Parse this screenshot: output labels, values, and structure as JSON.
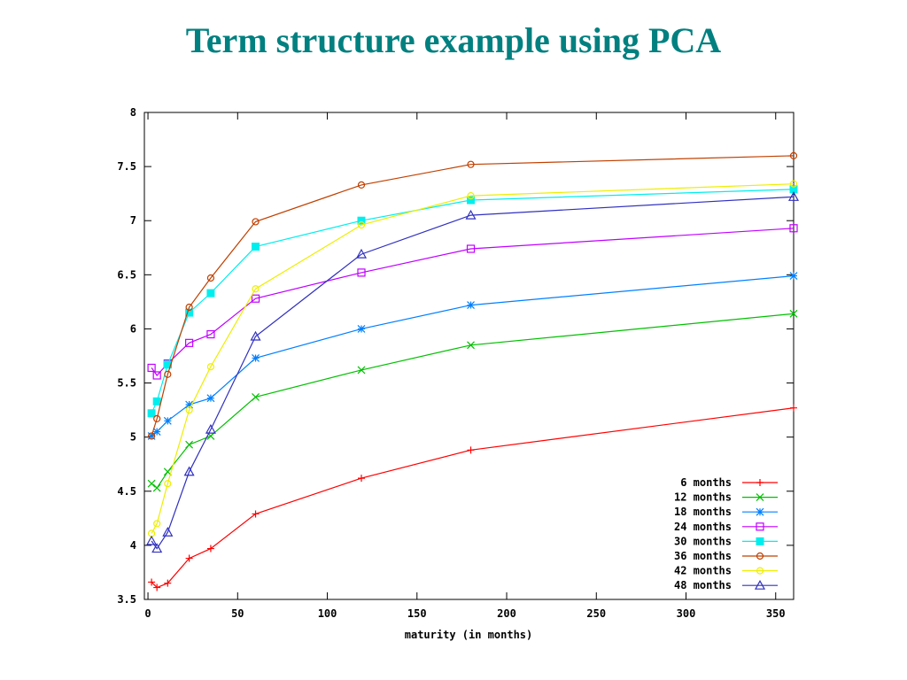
{
  "slide": {
    "title": "Term structure example using PCA"
  },
  "chart_data": {
    "type": "line",
    "title": "",
    "xlabel": "maturity (in months)",
    "ylabel": "",
    "xlim": [
      -2,
      360
    ],
    "ylim": [
      3.5,
      8
    ],
    "xticks": [
      0,
      50,
      100,
      150,
      200,
      250,
      300,
      350
    ],
    "yticks": [
      3.5,
      4,
      4.5,
      5,
      5.5,
      6,
      6.5,
      7,
      7.5,
      8
    ],
    "ytick_labels": [
      "3.5",
      "4",
      "4.5",
      "5",
      "5.5",
      "6",
      "6.5",
      "7",
      "7.5",
      "8"
    ],
    "grid": false,
    "legend_position": "bottom-right",
    "x": [
      2,
      5,
      11,
      23,
      35,
      60,
      119,
      180,
      360
    ],
    "series": [
      {
        "name": "6 months",
        "color": "#ff0000",
        "marker": "plus",
        "values": [
          3.66,
          3.61,
          3.65,
          3.88,
          3.97,
          4.29,
          4.62,
          4.88,
          5.27
        ]
      },
      {
        "name": "12 months",
        "color": "#00c000",
        "marker": "x",
        "values": [
          4.57,
          4.53,
          4.68,
          4.93,
          5.01,
          5.37,
          5.62,
          5.85,
          6.14
        ]
      },
      {
        "name": "18 months",
        "color": "#0080ff",
        "marker": "star",
        "values": [
          5.01,
          5.05,
          5.15,
          5.3,
          5.36,
          5.73,
          6.0,
          6.22,
          6.49
        ]
      },
      {
        "name": "24 months",
        "color": "#c000ff",
        "marker": "open-square",
        "values": [
          5.64,
          5.57,
          5.68,
          5.87,
          5.95,
          6.28,
          6.52,
          6.74,
          6.93
        ]
      },
      {
        "name": "30 months",
        "color": "#00eeee",
        "marker": "filled-square",
        "values": [
          5.22,
          5.33,
          5.67,
          6.15,
          6.33,
          6.76,
          7.0,
          7.19,
          7.29
        ]
      },
      {
        "name": "36 months",
        "color": "#c04000",
        "marker": "open-circle",
        "values": [
          5.01,
          5.17,
          5.58,
          6.2,
          6.47,
          6.99,
          7.33,
          7.52,
          7.6
        ]
      },
      {
        "name": "42 months",
        "color": "#eeee00",
        "marker": "open-circle",
        "values": [
          4.11,
          4.2,
          4.57,
          5.25,
          5.65,
          6.37,
          6.96,
          7.23,
          7.34
        ]
      },
      {
        "name": "48 months",
        "color": "#3030c0",
        "marker": "open-triangle",
        "values": [
          4.04,
          3.97,
          4.12,
          4.68,
          5.07,
          5.93,
          6.69,
          7.05,
          7.22
        ]
      }
    ]
  }
}
